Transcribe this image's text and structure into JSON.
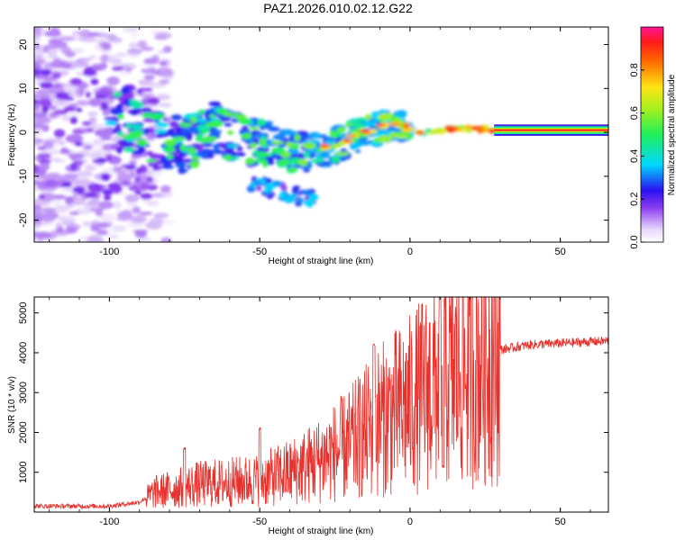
{
  "title": "PAZ1.2026.010.02.12.G22",
  "chart_data": [
    {
      "type": "heatmap",
      "xlabel": "Height of straight line (km)",
      "ylabel": "Frequency (Hz)",
      "xlim": [
        -125,
        66
      ],
      "ylim": [
        -25,
        24
      ],
      "xticks": [
        -100,
        -50,
        0,
        50
      ],
      "xtick_labels": [
        "-100",
        "-50",
        "0",
        "50"
      ],
      "yticks": [
        -20,
        -10,
        0,
        10,
        20
      ],
      "ytick_labels": [
        "-20",
        "-10",
        "0",
        "10",
        "20"
      ],
      "colorbar": {
        "label": "Normalized spectral amplitude",
        "range": [
          0.0,
          1.0
        ],
        "ticks": [
          0.0,
          0.2,
          0.4,
          0.6,
          0.8
        ],
        "tick_labels": [
          "0.0",
          "0.2",
          "0.4",
          "0.6",
          "0.8"
        ]
      },
      "ridge_frequency": [
        {
          "x": -95,
          "f": 3
        },
        {
          "x": -85,
          "f": -2
        },
        {
          "x": -75,
          "f": -3
        },
        {
          "x": -65,
          "f": 1
        },
        {
          "x": -55,
          "f": -2
        },
        {
          "x": -45,
          "f": -3
        },
        {
          "x": -35,
          "f": -5
        },
        {
          "x": -25,
          "f": -3
        },
        {
          "x": -15,
          "f": 0
        },
        {
          "x": -5,
          "f": 2
        },
        {
          "x": 5,
          "f": 0
        },
        {
          "x": 15,
          "f": 1
        },
        {
          "x": 30,
          "f": 0.5
        },
        {
          "x": 66,
          "f": 0.5
        }
      ],
      "secondary_branch": [
        {
          "x": -50,
          "f": -12
        },
        {
          "x": -45,
          "f": -13
        },
        {
          "x": -40,
          "f": -14
        },
        {
          "x": -35,
          "f": -15
        }
      ]
    },
    {
      "type": "line",
      "xlabel": "Height of straight line (km)",
      "ylabel": "SNR (10 * v/v)",
      "xlim": [
        -125,
        66
      ],
      "ylim": [
        0,
        5400
      ],
      "xticks": [
        -100,
        -50,
        0,
        50
      ],
      "xtick_labels": [
        "-100",
        "-50",
        "0",
        "50"
      ],
      "yticks": [
        1000,
        2000,
        3000,
        4000,
        5000
      ],
      "ytick_labels": [
        "1000",
        "2000",
        "3000",
        "4000",
        "5000"
      ],
      "color": "#e8312c",
      "envelope": [
        {
          "x": -125,
          "y": 150
        },
        {
          "x": -100,
          "y": 150
        },
        {
          "x": -90,
          "y": 250
        },
        {
          "x": -85,
          "y": 500
        },
        {
          "x": -70,
          "y": 700
        },
        {
          "x": -50,
          "y": 800
        },
        {
          "x": -40,
          "y": 1000
        },
        {
          "x": -30,
          "y": 1300
        },
        {
          "x": -20,
          "y": 1700
        },
        {
          "x": -10,
          "y": 2300
        },
        {
          "x": 0,
          "y": 2700
        },
        {
          "x": 10,
          "y": 3300
        },
        {
          "x": 20,
          "y": 3700
        },
        {
          "x": 28,
          "y": 4050
        },
        {
          "x": 40,
          "y": 4200
        },
        {
          "x": 66,
          "y": 4300
        }
      ],
      "spikes": [
        {
          "x": -75,
          "y": 1600
        },
        {
          "x": -50,
          "y": 2100
        },
        {
          "x": -12,
          "y": 4200
        },
        {
          "x": 10,
          "y": 5400
        },
        {
          "x": 11,
          "y": 1150
        }
      ]
    }
  ]
}
